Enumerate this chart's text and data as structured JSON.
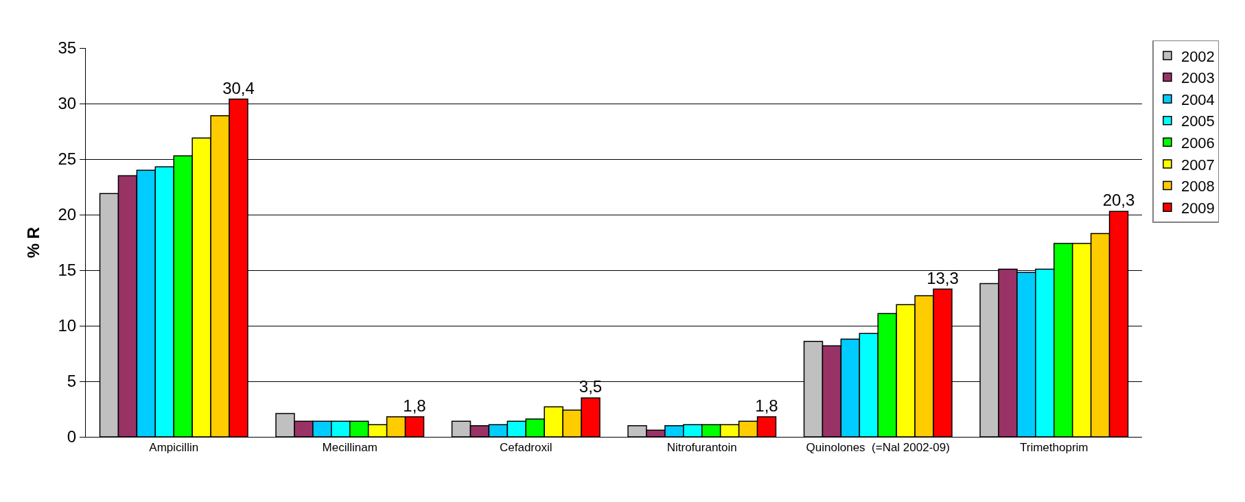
{
  "chart_data": {
    "type": "bar",
    "ylabel": "% R",
    "categories": [
      "Ampicillin",
      "Mecillinam",
      "Cefadroxil",
      "Nitrofurantoin",
      "Quinolones  (=Nal 2002-09)",
      "Trimethoprim"
    ],
    "series": [
      {
        "name": "2002",
        "color": "#c0c0c0",
        "values": [
          21.9,
          2.1,
          1.4,
          1.0,
          8.6,
          13.8
        ]
      },
      {
        "name": "2003",
        "color": "#993366",
        "values": [
          23.5,
          1.4,
          1.0,
          0.6,
          8.2,
          15.1
        ]
      },
      {
        "name": "2004",
        "color": "#00ccff",
        "values": [
          24.0,
          1.4,
          1.1,
          1.0,
          8.8,
          14.8
        ]
      },
      {
        "name": "2005",
        "color": "#00ffff",
        "values": [
          24.3,
          1.4,
          1.4,
          1.1,
          9.3,
          15.1
        ]
      },
      {
        "name": "2006",
        "color": "#00ff00",
        "values": [
          25.3,
          1.4,
          1.6,
          1.1,
          11.1,
          17.4
        ]
      },
      {
        "name": "2007",
        "color": "#ffff00",
        "values": [
          26.9,
          1.1,
          2.7,
          1.1,
          11.9,
          17.4
        ]
      },
      {
        "name": "2008",
        "color": "#ffcc00",
        "values": [
          28.9,
          1.8,
          2.4,
          1.4,
          12.7,
          18.3
        ]
      },
      {
        "name": "2009",
        "color": "#ff0000",
        "values": [
          30.4,
          1.8,
          3.5,
          1.8,
          13.3,
          20.3
        ],
        "value_labels": [
          "30,4",
          "1,8",
          "3,5",
          "1,8",
          "13,3",
          "20,3"
        ]
      }
    ],
    "ylim": [
      0,
      35
    ],
    "yticks": [
      0,
      5,
      10,
      15,
      20,
      25,
      30,
      35
    ],
    "grid": "y",
    "legend": "right"
  }
}
